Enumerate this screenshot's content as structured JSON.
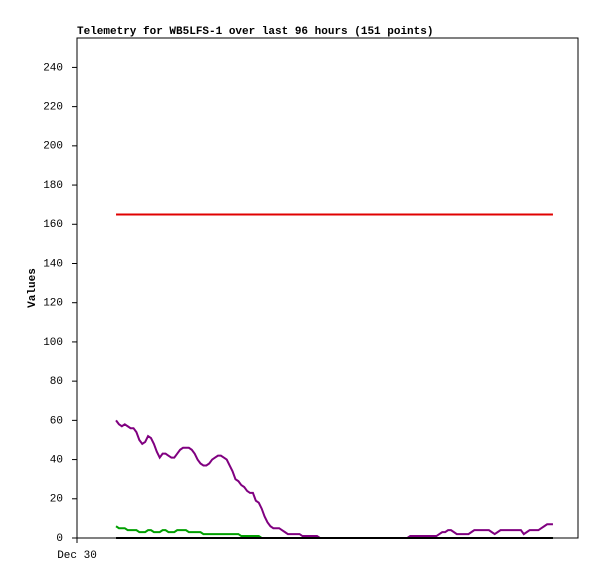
{
  "chart_data": {
    "type": "line",
    "title": "Telemetry for WB5LFS-1 over last 96 hours (151 points)",
    "y_label": "Values",
    "ylim": [
      0,
      255
    ],
    "yticks": [
      0,
      20,
      40,
      60,
      80,
      100,
      120,
      140,
      160,
      180,
      200,
      220,
      240
    ],
    "xlim": [
      -13.4,
      158.6
    ],
    "xticks": [
      {
        "value": -13.4,
        "label": "Dec 30"
      }
    ],
    "series": [
      {
        "color": "#e00000",
        "values": [
          165,
          165,
          165,
          165,
          165,
          165,
          165,
          165,
          165,
          165,
          165,
          165,
          165,
          165,
          165,
          165,
          165,
          165,
          165,
          165,
          165,
          165,
          165,
          165,
          165,
          165,
          165,
          165,
          165,
          165,
          165,
          165,
          165,
          165,
          165,
          165,
          165,
          165,
          165,
          165,
          165,
          165,
          165,
          165,
          165,
          165,
          165,
          165,
          165,
          165,
          165,
          165,
          165,
          165,
          165,
          165,
          165,
          165,
          165,
          165,
          165,
          165,
          165,
          165,
          165,
          165,
          165,
          165,
          165,
          165,
          165,
          165,
          165,
          165,
          165,
          165,
          165,
          165,
          165,
          165,
          165,
          165,
          165,
          165,
          165,
          165,
          165,
          165,
          165,
          165,
          165,
          165,
          165,
          165,
          165,
          165,
          165,
          165,
          165,
          165,
          165,
          165,
          165,
          165,
          165,
          165,
          165,
          165,
          165,
          165,
          165,
          165,
          165,
          165,
          165,
          165,
          165,
          165,
          165,
          165,
          165,
          165,
          165,
          165,
          165,
          165,
          165,
          165,
          165,
          165,
          165,
          165,
          165,
          165,
          165,
          165,
          165,
          165,
          165,
          165,
          165,
          165,
          165,
          165,
          165,
          165,
          165,
          165,
          165,
          165,
          165
        ]
      },
      {
        "color": "#800080",
        "values": [
          60,
          58,
          57,
          58,
          57,
          56,
          56,
          54,
          50,
          48,
          49,
          52,
          51,
          48,
          44,
          41,
          43,
          43,
          42,
          41,
          41,
          43,
          45,
          46,
          46,
          46,
          45,
          43,
          40,
          38,
          37,
          37,
          38,
          40,
          41,
          42,
          42,
          41,
          40,
          37,
          34,
          30,
          29,
          27,
          26,
          24,
          23,
          23,
          19,
          18,
          15,
          11,
          8,
          6,
          5,
          5,
          5,
          4,
          3,
          2,
          2,
          2,
          2,
          2,
          1,
          1,
          1,
          1,
          1,
          1,
          0,
          0,
          0,
          0,
          0,
          0,
          0,
          0,
          0,
          0,
          0,
          0,
          0,
          0,
          0,
          0,
          0,
          0,
          0,
          0,
          0,
          0,
          0,
          0,
          0,
          0,
          0,
          0,
          0,
          0,
          0,
          1,
          1,
          1,
          1,
          1,
          1,
          1,
          1,
          1,
          1,
          2,
          3,
          3,
          4,
          4,
          3,
          2,
          2,
          2,
          2,
          2,
          3,
          4,
          4,
          4,
          4,
          4,
          4,
          3,
          2,
          3,
          4,
          4,
          4,
          4,
          4,
          4,
          4,
          4,
          2,
          3,
          4,
          4,
          4,
          4,
          5,
          6,
          7,
          7,
          7
        ]
      },
      {
        "color": "#00a000",
        "values": [
          6,
          5,
          5,
          5,
          4,
          4,
          4,
          4,
          3,
          3,
          3,
          4,
          4,
          3,
          3,
          3,
          4,
          4,
          3,
          3,
          3,
          4,
          4,
          4,
          4,
          3,
          3,
          3,
          3,
          3,
          2,
          2,
          2,
          2,
          2,
          2,
          2,
          2,
          2,
          2,
          2,
          2,
          2,
          1,
          1,
          1,
          1,
          1,
          1,
          1,
          0,
          0,
          0,
          0,
          0,
          0,
          0,
          0,
          0,
          0,
          0,
          0,
          0,
          0,
          0,
          0,
          0,
          0,
          0,
          0,
          0,
          0,
          0,
          0,
          0,
          0,
          0,
          0,
          0,
          0,
          0,
          0,
          0,
          0,
          0,
          0,
          0,
          0,
          0,
          0,
          0,
          0,
          0,
          0,
          0,
          0,
          0,
          0,
          0,
          0,
          0,
          0,
          0,
          0,
          0,
          0,
          0,
          0,
          0,
          0,
          0,
          0,
          0,
          0,
          0,
          0,
          0,
          0,
          0,
          0,
          0,
          0,
          0,
          0,
          0,
          0,
          0,
          0,
          0,
          0,
          0,
          0,
          0,
          0,
          0,
          0,
          0,
          0,
          0,
          0,
          0,
          0,
          0,
          0,
          0,
          0,
          0,
          0,
          0,
          0,
          0
        ]
      },
      {
        "color": "#000000",
        "values": [
          0,
          0,
          0,
          0,
          0,
          0,
          0,
          0,
          0,
          0,
          0,
          0,
          0,
          0,
          0,
          0,
          0,
          0,
          0,
          0,
          0,
          0,
          0,
          0,
          0,
          0,
          0,
          0,
          0,
          0,
          0,
          0,
          0,
          0,
          0,
          0,
          0,
          0,
          0,
          0,
          0,
          0,
          0,
          0,
          0,
          0,
          0,
          0,
          0,
          0,
          0,
          0,
          0,
          0,
          0,
          0,
          0,
          0,
          0,
          0,
          0,
          0,
          0,
          0,
          0,
          0,
          0,
          0,
          0,
          0,
          0,
          0,
          0,
          0,
          0,
          0,
          0,
          0,
          0,
          0,
          0,
          0,
          0,
          0,
          0,
          0,
          0,
          0,
          0,
          0,
          0,
          0,
          0,
          0,
          0,
          0,
          0,
          0,
          0,
          0,
          0,
          0,
          0,
          0,
          0,
          0,
          0,
          0,
          0,
          0,
          0,
          0,
          0,
          0,
          0,
          0,
          0,
          0,
          0,
          0,
          0,
          0,
          0,
          0,
          0,
          0,
          0,
          0,
          0,
          0,
          0,
          0,
          0,
          0,
          0,
          0,
          0,
          0,
          0,
          0,
          0,
          0,
          0,
          0,
          0,
          0,
          0,
          0,
          0,
          0,
          0
        ]
      }
    ]
  }
}
